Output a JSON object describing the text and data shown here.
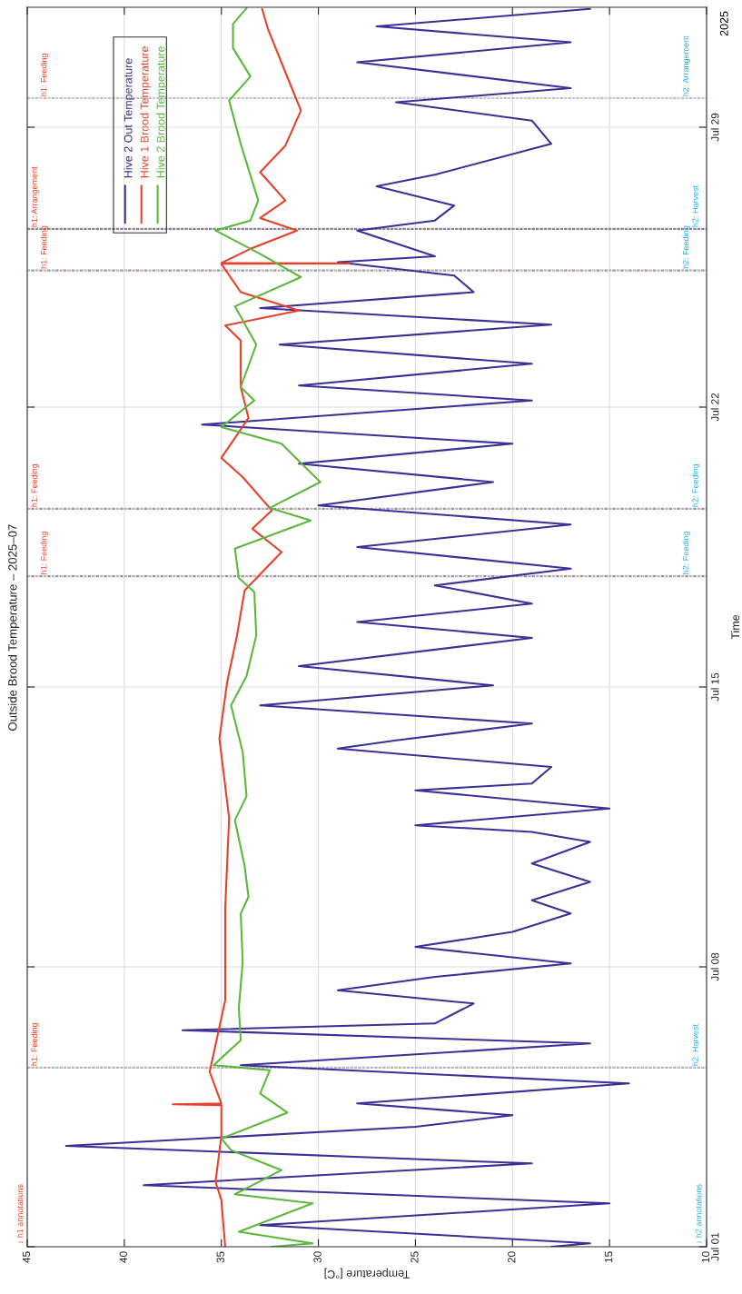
{
  "chart_data": {
    "type": "line",
    "title": "Outside Brood Temperature – 2025–07",
    "xlabel": "Temperature [°C]",
    "ylabel": "Time",
    "xlim": [
      45,
      10
    ],
    "xticks": [
      45,
      40,
      35,
      30,
      25,
      20,
      15,
      10
    ],
    "ylim": [
      "2025-07-01",
      "2025-08-01"
    ],
    "yticks": [
      {
        "value": "2025-07-01",
        "label": "Jul 01"
      },
      {
        "value": "2025-07-08",
        "label": "Jul 08"
      },
      {
        "value": "2025-07-15",
        "label": "Jul 15"
      },
      {
        "value": "2025-07-22",
        "label": "Jul 22"
      },
      {
        "value": "2025-07-29",
        "label": "Jul 29"
      }
    ],
    "grid": true,
    "legend": "top left",
    "line_style": "solid",
    "orientation": "horizontal",
    "annotations": [
      "↓ h1 annotations",
      "↓ h2 annotations",
      "2025"
    ],
    "ref_lines": [
      {
        "axis": "y",
        "value": "2025-07-05T11:30",
        "label": "h1: Feeding",
        "color": "#f0a090",
        "line_style": "dotted"
      },
      {
        "axis": "y",
        "value": "2025-07-05T11:30",
        "label": "h2: Harvest",
        "color": "#90c8e0",
        "line_style": "dotted"
      },
      {
        "axis": "y",
        "value": "2025-07-17T18:30",
        "label": "h1: Feeding",
        "color": "#f0a090",
        "line_style": "dotted"
      },
      {
        "axis": "y",
        "value": "2025-07-17T18:30",
        "label": "h2: Feeding",
        "color": "#70a0c8",
        "line_style": "dotted"
      },
      {
        "axis": "y",
        "value": "2025-07-19T11:00",
        "label": "h1: Feeding",
        "color": "#f0a090",
        "line_style": "dotted"
      },
      {
        "axis": "y",
        "value": "2025-07-19T11:00",
        "label": "h2: Feeding",
        "color": "#70a0c8",
        "line_style": "dotted"
      },
      {
        "axis": "y",
        "value": "2025-07-25T10:00",
        "label": "h1: Feeding",
        "color": "#f0a090",
        "line_style": "dotted"
      },
      {
        "axis": "y",
        "value": "2025-07-25T10:00",
        "label": "h2: Feeding",
        "color": "#70a0c8",
        "line_style": "dotted"
      },
      {
        "axis": "y",
        "value": "2025-07-26T11:00",
        "label": "h1: Arrangement",
        "color": "#a08080",
        "line_style": "dotted"
      },
      {
        "axis": "y",
        "value": "2025-07-26T11:00",
        "label": "h2: Harvest",
        "color": "#7888a0",
        "line_style": "dotted"
      },
      {
        "axis": "y",
        "value": "2025-07-29T17:30",
        "label": "h1: Feeding",
        "color": "#f0b0a0",
        "line_style": "dotted"
      },
      {
        "axis": "y",
        "value": "2025-07-29T17:30",
        "label": "h2: Arrangement",
        "color": "#a8d8f0",
        "line_style": "dotted"
      }
    ],
    "series": [
      {
        "name": "Hive 2 Out Temperature",
        "color": "#3a3096",
        "values": [
          18,
          16,
          33,
          15,
          39,
          19,
          43,
          25,
          20,
          28,
          14,
          34,
          16,
          37,
          24,
          22,
          29,
          24,
          17,
          25,
          20,
          17,
          19,
          16,
          19,
          16,
          19,
          25,
          15,
          25,
          19,
          18,
          29,
          26,
          19,
          33,
          21,
          31,
          19,
          28,
          19,
          24,
          17,
          28,
          17,
          30,
          21,
          31,
          20,
          36,
          19,
          31,
          19,
          32,
          18,
          33,
          22,
          23,
          29,
          24,
          28,
          24,
          23,
          27,
          24,
          18,
          19,
          26,
          17,
          28,
          17,
          27,
          16
        ],
        "x": [
          "2025-07-01T00:00",
          "2025-07-01T02:00",
          "2025-07-01T13:00",
          "2025-07-02T02:00",
          "2025-07-02T13:00",
          "2025-07-03T02:00",
          "2025-07-03T12:30",
          "2025-07-04T00:00",
          "2025-07-04T07:00",
          "2025-07-04T14:00",
          "2025-07-05T02:00",
          "2025-07-05T13:00",
          "2025-07-06T02:00",
          "2025-07-06T10:00",
          "2025-07-06T14:00",
          "2025-07-07T02:00",
          "2025-07-07T10:00",
          "2025-07-07T18:00",
          "2025-07-08T02:00",
          "2025-07-08T12:00",
          "2025-07-08T21:00",
          "2025-07-09T08:00",
          "2025-07-09T16:00",
          "2025-07-10T03:00",
          "2025-07-10T14:00",
          "2025-07-11T03:00",
          "2025-07-11T09:00",
          "2025-07-11T13:00",
          "2025-07-11T23:00",
          "2025-07-12T10:00",
          "2025-07-12T14:00",
          "2025-07-13T00:00",
          "2025-07-13T11:00",
          "2025-07-13T16:00",
          "2025-07-14T02:00",
          "2025-07-14T13:00",
          "2025-07-15T01:00",
          "2025-07-15T12:30",
          "2025-07-16T05:30",
          "2025-07-16T15:00",
          "2025-07-17T02:00",
          "2025-07-17T13:00",
          "2025-07-17T23:00",
          "2025-07-18T12:00",
          "2025-07-19T01:30",
          "2025-07-19T13:00",
          "2025-07-20T03:00",
          "2025-07-20T14:00",
          "2025-07-21T02:00",
          "2025-07-21T13:30",
          "2025-07-22T04:00",
          "2025-07-22T13:00",
          "2025-07-23T02:00",
          "2025-07-23T13:30",
          "2025-07-24T01:30",
          "2025-07-24T11:30",
          "2025-07-24T21:00",
          "2025-07-25T07:00",
          "2025-07-25T15:00",
          "2025-07-25T18:30",
          "2025-07-26T10:00",
          "2025-07-26T16:00",
          "2025-07-27T01:00",
          "2025-07-27T12:30",
          "2025-07-27T19:30",
          "2025-07-28T14:00",
          "2025-07-29T04:00",
          "2025-07-29T15:00",
          "2025-07-29T23:30",
          "2025-07-30T15:00",
          "2025-07-31T03:00",
          "2025-07-31T12:30",
          "2025-07-31T23:00"
        ]
      },
      {
        "name": "Hive 1 Brood Temperature",
        "color": "#e8402a",
        "values": [
          34.8,
          35,
          35.3,
          35,
          35,
          37.5,
          35,
          35.6,
          34.8,
          34.8,
          34.6,
          35.1,
          34.7,
          34.2,
          33.8,
          31.9,
          33.4,
          32.4,
          33.9,
          35,
          33.6,
          34,
          34,
          34.8,
          31,
          34,
          35,
          28.4,
          35,
          33.5,
          31.1,
          33,
          31.7,
          33,
          31.7,
          30.9,
          31.7,
          32.6,
          32.9
        ],
        "x": [
          "2025-07-01T00:00",
          "2025-07-02T04:00",
          "2025-07-02T15:00",
          "2025-07-03T18:30",
          "2025-07-04T13:00",
          "2025-07-04T13:30",
          "2025-07-04T14:00",
          "2025-07-05T09:00",
          "2025-07-07T04:00",
          "2025-07-09T11:00",
          "2025-07-11T17:30",
          "2025-07-13T17:00",
          "2025-07-15T03:00",
          "2025-07-16T06:30",
          "2025-07-17T10:00",
          "2025-07-18T09:00",
          "2025-07-18T23:00",
          "2025-07-19T10:00",
          "2025-07-20T06:00",
          "2025-07-20T17:30",
          "2025-07-21T17:30",
          "2025-07-22T12:00",
          "2025-07-23T16:00",
          "2025-07-24T01:00",
          "2025-07-24T10:00",
          "2025-07-24T21:00",
          "2025-07-25T14:00",
          "2025-07-25T14:15",
          "2025-07-25T14:30",
          "2025-07-25T23:00",
          "2025-07-26T10:00",
          "2025-07-26T17:30",
          "2025-07-27T04:00",
          "2025-07-27T21:00",
          "2025-07-28T13:00",
          "2025-07-29T10:00",
          "2025-07-30T09:00",
          "2025-07-31T11:00",
          "2025-07-31T23:00"
        ]
      },
      {
        "name": "Hive 2 Brood Temperature",
        "color": "#5cb83c",
        "values": [
          32.4,
          30.3,
          34.1,
          30.3,
          34.3,
          31.9,
          34.5,
          35,
          31.6,
          33,
          32.5,
          35.4,
          34,
          34.1,
          33.9,
          34,
          33.6,
          33.8,
          34.3,
          33.7,
          33.9,
          34.5,
          33.7,
          33.2,
          33.3,
          34.1,
          34.3,
          30.4,
          32.5,
          29.9,
          31.9,
          35,
          33.3,
          34,
          33.2,
          34.3,
          30.9,
          33,
          35.3,
          33.5,
          33.1,
          34,
          34.6,
          33.5,
          34.4,
          34.4,
          33.7
        ],
        "x": [
          "2025-07-01T00:00",
          "2025-07-01T02:00",
          "2025-07-01T09:00",
          "2025-07-02T02:00",
          "2025-07-02T07:30",
          "2025-07-02T22:00",
          "2025-07-03T10:00",
          "2025-07-03T17:00",
          "2025-07-04T08:30",
          "2025-07-04T20:00",
          "2025-07-05T10:00",
          "2025-07-05T13:00",
          "2025-07-06T04:00",
          "2025-07-06T23:00",
          "2025-07-08T03:00",
          "2025-07-09T08:00",
          "2025-07-09T18:00",
          "2025-07-10T12:30",
          "2025-07-11T16:00",
          "2025-07-12T06:30",
          "2025-07-13T09:00",
          "2025-07-14T13:00",
          "2025-07-15T06:30",
          "2025-07-16T07:00",
          "2025-07-17T09:00",
          "2025-07-17T17:30",
          "2025-07-18T11:00",
          "2025-07-19T04:00",
          "2025-07-19T11:30",
          "2025-07-20T03:00",
          "2025-07-21T02:00",
          "2025-07-21T12:00",
          "2025-07-22T04:00",
          "2025-07-22T12:00",
          "2025-07-23T13:30",
          "2025-07-24T12:30",
          "2025-07-25T06:00",
          "2025-07-25T20:00",
          "2025-07-26T10:00",
          "2025-07-26T16:00",
          "2025-07-27T04:00",
          "2025-07-28T14:00",
          "2025-07-29T16:00",
          "2025-07-30T06:30",
          "2025-07-30T23:30",
          "2025-07-31T14:00",
          "2025-07-31T23:30"
        ]
      }
    ]
  }
}
